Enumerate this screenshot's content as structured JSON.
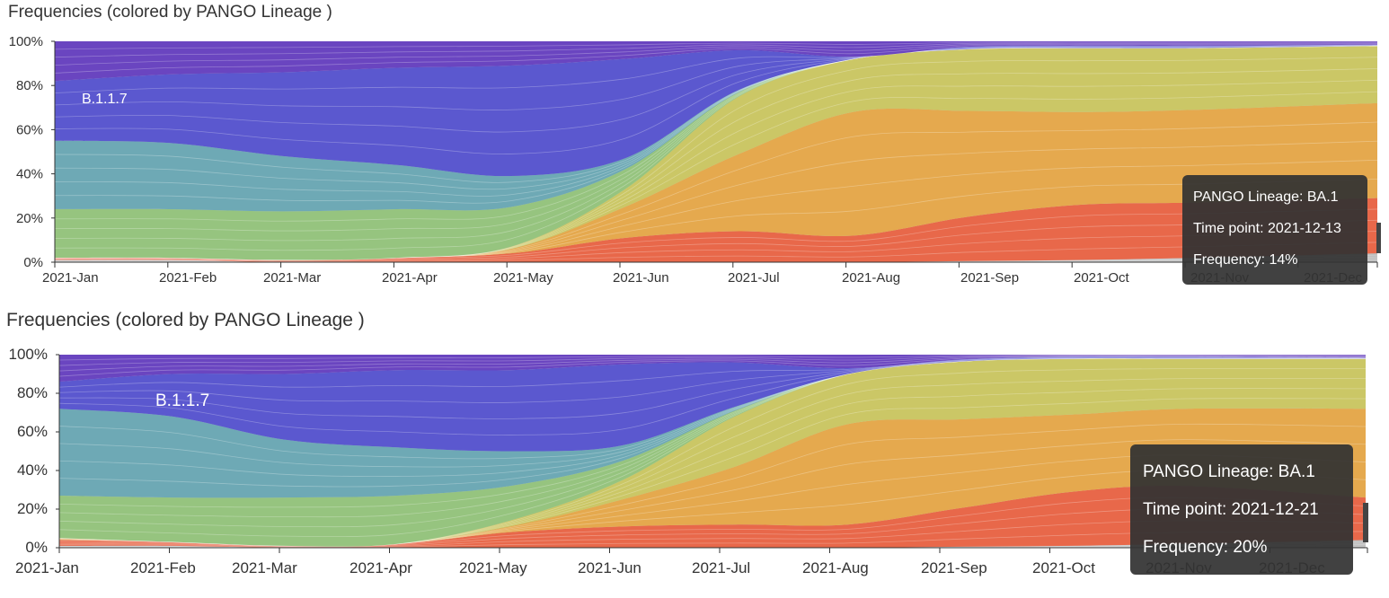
{
  "panels": [
    {
      "title": "Frequencies (colored by PANGO Lineage )",
      "label": "B.1.1.7",
      "tooltip": {
        "lineage": "PANGO Lineage: BA.1",
        "time_point": "Time point: 2021-12-13",
        "frequency": "Frequency: 14%"
      }
    },
    {
      "title": "Frequencies (colored by PANGO Lineage )",
      "label": "B.1.1.7",
      "tooltip": {
        "lineage": "PANGO Lineage: BA.1",
        "time_point": "Time point: 2021-12-21",
        "frequency": "Frequency: 20%"
      }
    }
  ],
  "chart_data": [
    {
      "type": "area",
      "title": "Frequencies (colored by PANGO Lineage )",
      "stacked": true,
      "x_ticks": [
        "2021-Jan",
        "2021-Feb",
        "2021-Mar",
        "2021-Apr",
        "2021-May",
        "2021-Jun",
        "2021-Jul",
        "2021-Aug",
        "2021-Sep",
        "2021-Oct",
        "2021-Nov",
        "2021-Dec"
      ],
      "y_ticks": [
        "0%",
        "20%",
        "40%",
        "60%",
        "80%",
        "100%"
      ],
      "ylim": [
        0,
        100
      ],
      "x": [
        0,
        1,
        2,
        3,
        4,
        5,
        6,
        7,
        8,
        9,
        10,
        11.6
      ],
      "series": [
        {
          "color": "#bdbdbd",
          "values": [
            1,
            1,
            0,
            0,
            0,
            0,
            0,
            0,
            0.5,
            1,
            2,
            4
          ]
        },
        {
          "color": "#e8684a",
          "values": [
            1,
            1,
            1,
            2,
            4,
            11,
            14,
            12,
            20,
            25,
            25,
            25
          ]
        },
        {
          "color": "#e5a94e",
          "values": [
            0,
            0,
            0,
            0,
            2,
            14,
            35,
            56,
            48,
            42,
            42,
            43
          ]
        },
        {
          "color": "#cbc766",
          "values": [
            0,
            0,
            0,
            0,
            1,
            8,
            26,
            24,
            28,
            29,
            28,
            26
          ]
        },
        {
          "color": "#96c47f",
          "values": [
            22,
            22,
            22,
            22,
            18,
            9,
            2,
            0,
            0,
            0,
            0,
            0
          ]
        },
        {
          "color": "#6ea9b5",
          "values": [
            31,
            30,
            25,
            20,
            14,
            5,
            1,
            0,
            0,
            0,
            0,
            0
          ]
        },
        {
          "color": "#5b58cf",
          "values": [
            27,
            31,
            38,
            44,
            50,
            45,
            18,
            1,
            1,
            1,
            1,
            0.5
          ]
        },
        {
          "color": "#6a45c0",
          "values": [
            18,
            15,
            14,
            12,
            11,
            8,
            4,
            7,
            2.5,
            2,
            2,
            1.5
          ]
        }
      ],
      "annotation": "B.1.1.7",
      "tooltip": {
        "lineage": "BA.1",
        "time_point": "2021-12-13",
        "frequency": "14%"
      }
    },
    {
      "type": "area",
      "title": "Frequencies (colored by PANGO Lineage )",
      "stacked": true,
      "x_ticks": [
        "2021-Jan",
        "2021-Feb",
        "2021-Mar",
        "2021-Apr",
        "2021-May",
        "2021-Jun",
        "2021-Jul",
        "2021-Aug",
        "2021-Sep",
        "2021-Oct",
        "2021-Nov",
        "2021-Dec"
      ],
      "y_ticks": [
        "0%",
        "20%",
        "40%",
        "60%",
        "80%",
        "100%"
      ],
      "ylim": [
        0,
        100
      ],
      "x": [
        0,
        1,
        2,
        3,
        4,
        5,
        6,
        7,
        8,
        9,
        10,
        11.6
      ],
      "series": [
        {
          "color": "#bdbdbd",
          "values": [
            1,
            1,
            0,
            0,
            0,
            0,
            0,
            0,
            0.5,
            1,
            2,
            4
          ]
        },
        {
          "color": "#e8684a",
          "values": [
            3,
            2,
            1,
            2,
            8,
            11,
            12,
            12,
            20,
            28,
            30,
            22
          ]
        },
        {
          "color": "#e5a94e",
          "values": [
            1,
            0,
            0,
            0,
            3,
            14,
            30,
            52,
            46,
            40,
            40,
            46
          ]
        },
        {
          "color": "#cbc766",
          "values": [
            0,
            0,
            0,
            0,
            3,
            10,
            26,
            26,
            30,
            29,
            26,
            26
          ]
        },
        {
          "color": "#96c47f",
          "values": [
            22,
            23,
            25,
            25,
            18,
            10,
            3,
            0,
            0,
            0,
            0,
            0
          ]
        },
        {
          "color": "#6ea9b5",
          "values": [
            45,
            42,
            30,
            25,
            18,
            8,
            2,
            0,
            0,
            0,
            0,
            0
          ]
        },
        {
          "color": "#5b58cf",
          "values": [
            14,
            22,
            34,
            40,
            42,
            42,
            23,
            3,
            1,
            1,
            1,
            0.5
          ]
        },
        {
          "color": "#6a45c0",
          "values": [
            14,
            10,
            10,
            8,
            8,
            5,
            4,
            7,
            2.5,
            1,
            1,
            1.5
          ]
        }
      ],
      "annotation": "B.1.1.7",
      "tooltip": {
        "lineage": "BA.1",
        "time_point": "2021-12-21",
        "frequency": "20%"
      }
    }
  ]
}
